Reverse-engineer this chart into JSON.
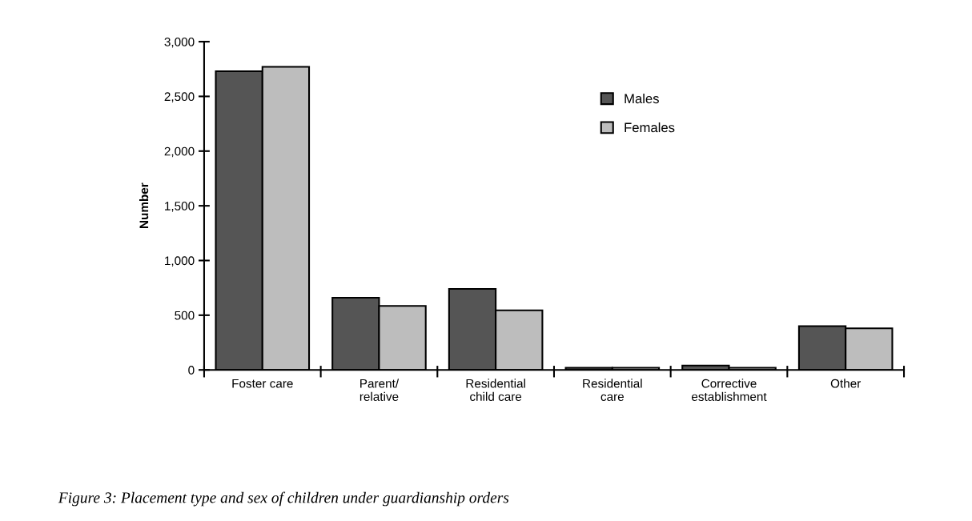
{
  "chart_data": {
    "type": "bar",
    "title": "Figure 3: Placement type and sex of children under guardianship orders",
    "ylabel": "Number",
    "categories": [
      "Foster care",
      "Parent/\nrelative",
      "Residential\nchild care",
      "Residential\ncare",
      "Corrective\nestablishment",
      "Other"
    ],
    "series": [
      {
        "name": "Males",
        "color": "#555555",
        "values": [
          2730,
          660,
          740,
          20,
          40,
          400
        ]
      },
      {
        "name": "Females",
        "color": "#bdbdbd",
        "values": [
          2770,
          585,
          545,
          20,
          20,
          380
        ]
      }
    ],
    "ylim": [
      0,
      3000
    ],
    "yticks": [
      0,
      500,
      {
        "value": 1000,
        "label": "1,000"
      },
      {
        "value": 1500,
        "label": "1,500"
      },
      {
        "value": 2000,
        "label": "2,000"
      },
      {
        "value": 2500,
        "label": "2,500"
      },
      {
        "value": 3000,
        "label": "3,000"
      }
    ],
    "grid": false,
    "legend": "top"
  }
}
